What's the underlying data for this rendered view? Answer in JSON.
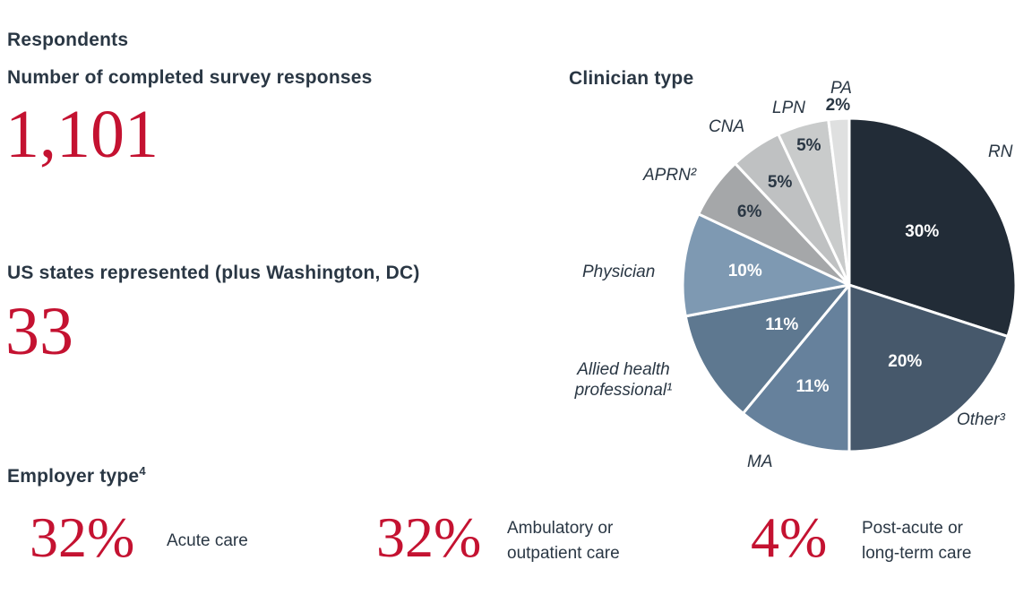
{
  "respondents": {
    "section_title": "Respondents",
    "surveys": {
      "label": "Number of completed survey responses",
      "value": "1,101"
    },
    "states": {
      "label": "US states represented (plus Washington, DC)",
      "value": "33"
    }
  },
  "chart_data": {
    "type": "pie",
    "title": "Clinician type",
    "direction": "clockwise",
    "start_angle_deg": 0,
    "legend_position": "labels-around-pie",
    "slices": [
      {
        "label": "RN",
        "value": 30,
        "pct_label": "30%",
        "color": "#222c37",
        "pct_color": "#ffffff"
      },
      {
        "label": "Other³",
        "value": 20,
        "pct_label": "20%",
        "color": "#46586b",
        "pct_color": "#ffffff"
      },
      {
        "label": "MA",
        "value": 11,
        "pct_label": "11%",
        "color": "#66819c",
        "pct_color": "#ffffff"
      },
      {
        "label": "Allied health\nprofessional¹",
        "value": 11,
        "pct_label": "11%",
        "color": "#5e7890",
        "pct_color": "#ffffff"
      },
      {
        "label": "Physician",
        "value": 10,
        "pct_label": "10%",
        "color": "#7e99b2",
        "pct_color": "#ffffff"
      },
      {
        "label": "APRN²",
        "value": 6,
        "pct_label": "6%",
        "color": "#a5a7a9",
        "pct_color": "#2a3744"
      },
      {
        "label": "CNA",
        "value": 5,
        "pct_label": "5%",
        "color": "#bfc1c2",
        "pct_color": "#2a3744"
      },
      {
        "label": "LPN",
        "value": 5,
        "pct_label": "5%",
        "color": "#c9cbcb",
        "pct_color": "#2a3744"
      },
      {
        "label": "PA",
        "value": 2,
        "pct_label": "2%",
        "color": "#dfe0e0",
        "pct_color": "#2a3744"
      }
    ]
  },
  "employer": {
    "title": "Employer type",
    "title_sup": "4",
    "items": [
      {
        "value": "32%",
        "label": "Acute care"
      },
      {
        "value": "32%",
        "label": "Ambulatory or\noutpatient care"
      },
      {
        "value": "4%",
        "label": "Post-acute or\nlong-term care"
      }
    ]
  },
  "colors": {
    "accent_red": "#c41231",
    "text_dark": "#2a3744"
  }
}
